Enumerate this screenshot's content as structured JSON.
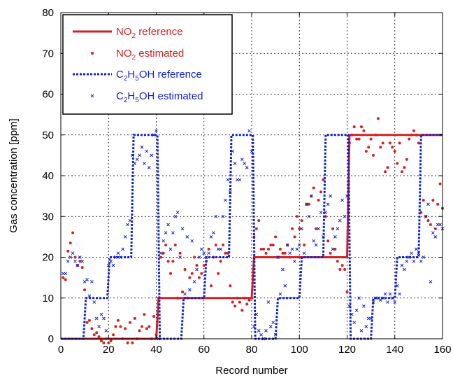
{
  "chart_data": {
    "type": "line",
    "title": "",
    "xlabel": "Record number",
    "ylabel": "Gas concentration [ppm]",
    "xlim": [
      0,
      160
    ],
    "ylim": [
      0,
      80
    ],
    "xticks": [
      0,
      20,
      40,
      60,
      80,
      100,
      120,
      140,
      160
    ],
    "yticks": [
      0,
      10,
      20,
      30,
      40,
      50,
      60,
      70,
      80
    ],
    "grid": true,
    "legend_position": "top-left",
    "legend": [
      {
        "text": "NO",
        "sub": "2",
        "rest": " reference"
      },
      {
        "text": "NO",
        "sub": "2",
        "rest": " estimated"
      },
      {
        "text": "C",
        "sub": "2",
        "text2": "H",
        "sub2": "5",
        "rest": "OH reference"
      },
      {
        "text": "C",
        "sub": "2",
        "text2": "H",
        "sub2": "5",
        "rest": "OH estimated"
      }
    ],
    "series": [
      {
        "key": "no2_ref",
        "style": "solid-line",
        "color": "#d42020",
        "x": [
          0,
          40,
          41,
          80,
          81,
          120,
          121,
          160
        ],
        "y": [
          0,
          0,
          10,
          10,
          20,
          20,
          50,
          50
        ]
      },
      {
        "key": "no2_est",
        "style": "dots",
        "color": "#d42020",
        "x": [
          1,
          2,
          3,
          4,
          5,
          6,
          7,
          8,
          9,
          10,
          11,
          12,
          13,
          14,
          15,
          16,
          17,
          18,
          19,
          20,
          21,
          22,
          23,
          24,
          25,
          26,
          27,
          28,
          29,
          30,
          31,
          32,
          33,
          34,
          35,
          36,
          37,
          38,
          39,
          40,
          41,
          42,
          43,
          44,
          45,
          46,
          47,
          48,
          49,
          50,
          51,
          52,
          53,
          54,
          55,
          56,
          57,
          58,
          59,
          60,
          61,
          62,
          63,
          64,
          65,
          66,
          67,
          68,
          69,
          70,
          71,
          72,
          73,
          74,
          75,
          76,
          77,
          78,
          79,
          80,
          81,
          82,
          83,
          84,
          85,
          86,
          87,
          88,
          89,
          90,
          91,
          92,
          93,
          94,
          95,
          96,
          97,
          98,
          99,
          100,
          101,
          102,
          103,
          104,
          105,
          106,
          107,
          108,
          109,
          110,
          111,
          112,
          113,
          114,
          115,
          116,
          117,
          118,
          119,
          120,
          121,
          122,
          123,
          124,
          125,
          126,
          127,
          128,
          129,
          130,
          131,
          132,
          133,
          134,
          135,
          136,
          137,
          138,
          139,
          140,
          141,
          142,
          143,
          144,
          145,
          146,
          147,
          148,
          149,
          150,
          151,
          152,
          153,
          154,
          155,
          156,
          157,
          158,
          159,
          160
        ],
        "y": [
          15,
          14.5,
          21.5,
          23.5,
          26,
          20,
          18,
          19,
          17.5,
          12,
          4,
          4.5,
          2.5,
          1,
          1.5,
          0.5,
          -0.5,
          -1,
          0,
          -1,
          -0.5,
          1,
          3,
          4.5,
          3,
          0,
          2.5,
          -1,
          4,
          -1,
          5,
          0,
          2,
          3,
          6,
          2.5,
          3,
          0,
          5.5,
          1,
          10,
          20,
          21,
          23,
          19,
          16,
          19,
          23,
          10,
          21,
          11.5,
          17,
          10,
          15,
          16,
          20,
          18,
          15,
          16,
          18,
          19,
          22,
          13,
          20,
          23,
          16,
          19,
          23,
          21,
          21,
          13,
          9,
          8,
          10,
          9,
          7,
          10,
          8.5,
          9.5,
          10,
          25,
          27,
          29,
          22,
          22,
          21,
          22,
          23,
          23,
          25,
          20,
          22,
          21,
          21,
          23,
          20,
          27,
          25,
          30,
          27,
          29,
          23,
          33,
          33,
          35,
          37,
          27,
          34,
          36,
          39,
          30,
          24,
          21,
          27,
          22,
          19,
          17,
          18,
          17,
          11.5,
          48,
          50,
          52,
          49,
          49,
          52,
          51,
          46,
          47,
          49,
          45,
          50,
          54,
          47,
          48,
          41,
          42,
          48,
          47,
          46,
          43,
          48,
          41,
          42,
          44,
          49,
          50,
          51,
          50,
          48,
          31,
          34,
          30,
          29,
          28,
          34,
          27,
          33,
          38,
          32
        ]
      },
      {
        "key": "c2h5oh_ref",
        "style": "dotted-line",
        "color": "#1420c8",
        "x": [
          0,
          9.5,
          10.5,
          19.5,
          20.5,
          29.5,
          30.5,
          40.5,
          41.5,
          50.5,
          51.5,
          60,
          61,
          70.5,
          71.5,
          80.5,
          81.5,
          90,
          91,
          100,
          101,
          110,
          111,
          120.5,
          121.5,
          130,
          131,
          140,
          141,
          150,
          151,
          160
        ],
        "y": [
          0,
          0,
          10,
          10,
          20,
          20,
          50,
          50,
          0,
          0,
          10,
          10,
          20,
          20,
          50,
          50,
          0,
          0,
          10,
          10,
          20,
          20,
          50,
          50,
          0,
          0,
          10,
          10,
          20,
          20,
          50,
          50
        ]
      },
      {
        "key": "c2h5oh_est",
        "style": "crosses",
        "color": "#1420c8",
        "x": [
          1,
          2,
          3,
          4,
          5,
          6,
          7,
          8,
          9,
          10,
          11,
          12,
          13,
          14,
          15,
          16,
          17,
          18,
          19,
          20,
          21,
          22,
          23,
          24,
          25,
          26,
          27,
          28,
          29,
          30,
          31,
          32,
          33,
          34,
          35,
          36,
          37,
          38,
          39,
          40,
          41,
          42,
          43,
          44,
          45,
          46,
          47,
          48,
          49,
          50,
          51,
          52,
          53,
          54,
          55,
          56,
          57,
          58,
          59,
          60,
          61,
          62,
          63,
          64,
          65,
          66,
          67,
          68,
          69,
          70,
          71,
          72,
          73,
          74,
          75,
          76,
          77,
          78,
          79,
          80,
          81,
          82,
          83,
          84,
          85,
          86,
          87,
          88,
          89,
          90,
          91,
          92,
          93,
          94,
          95,
          96,
          97,
          98,
          99,
          100,
          101,
          102,
          103,
          104,
          105,
          106,
          107,
          108,
          109,
          110,
          111,
          112,
          113,
          114,
          115,
          116,
          117,
          118,
          119,
          120,
          121,
          122,
          123,
          124,
          125,
          126,
          127,
          128,
          129,
          130,
          131,
          132,
          133,
          134,
          135,
          136,
          137,
          138,
          139,
          140,
          141,
          142,
          143,
          144,
          145,
          146,
          147,
          148,
          149,
          150,
          151,
          152,
          153,
          154,
          155,
          156,
          157,
          158,
          159,
          160
        ],
        "y": [
          16,
          16,
          19,
          20,
          21,
          19,
          18,
          20,
          19,
          14,
          14.5,
          10.5,
          14,
          9,
          5,
          3,
          6,
          5,
          2,
          18,
          19,
          18,
          20,
          21,
          20,
          22,
          25,
          28,
          29,
          45,
          43,
          44,
          45,
          47,
          43,
          46,
          42,
          45,
          50,
          51,
          0,
          21,
          24,
          26,
          28,
          22,
          26,
          30,
          31,
          20,
          27,
          11,
          25,
          12,
          24,
          14,
          17,
          20,
          22,
          21,
          20,
          21,
          25,
          26,
          30,
          22,
          22,
          30,
          34,
          39,
          36,
          46,
          43,
          39,
          39,
          44,
          43,
          42,
          51,
          46,
          3,
          6,
          2,
          1,
          0,
          2,
          9,
          3,
          4,
          1,
          20,
          11,
          17,
          13,
          23,
          21,
          22,
          19,
          22,
          23,
          27,
          21,
          33,
          30,
          35,
          24,
          23,
          27,
          31,
          25,
          31,
          33,
          35,
          22,
          25,
          27,
          29,
          34,
          30,
          35,
          8,
          6,
          4,
          7,
          10,
          2,
          8,
          3,
          5,
          5,
          9,
          10,
          10,
          9.5,
          10,
          11,
          9,
          11,
          10,
          9,
          13,
          11,
          18,
          17,
          19,
          20,
          21,
          19,
          22,
          21,
          19,
          20,
          30,
          33,
          14,
          26,
          25,
          28,
          28,
          27
        ]
      }
    ]
  }
}
